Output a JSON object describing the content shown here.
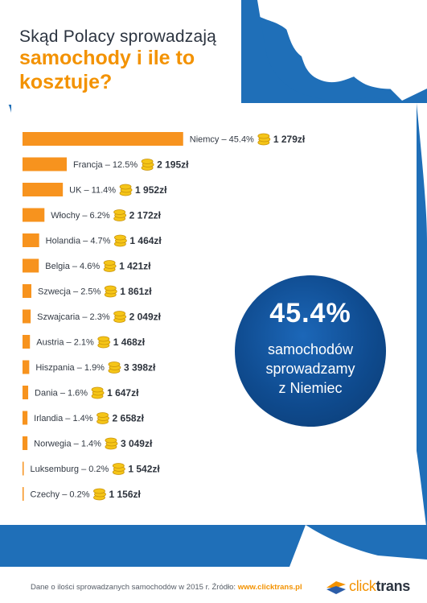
{
  "title": {
    "line1": "Skąd Polacy sprowadzają",
    "line2": "samochody i ile to",
    "line3": "kosztuje?"
  },
  "highlight": {
    "percent": "45.4%",
    "line1": "samochodów",
    "line2": "sprowadzamy",
    "line3": "z Niemiec"
  },
  "footer": {
    "text": "Dane o ilości sprowadzanych samochodów w 2015 r. Źródło:",
    "source": "www.clicktrans.pl",
    "logo_click": "click",
    "logo_trans": "trans"
  },
  "colors": {
    "bar": "#f7931e",
    "accent": "#f39200",
    "blue": "#1f6fb8",
    "circle": "#0f4b8f"
  },
  "chart_data": {
    "type": "bar",
    "orientation": "horizontal",
    "categories": [
      "Niemcy",
      "Francja",
      "UK",
      "Włochy",
      "Holandia",
      "Belgia",
      "Szwecja",
      "Szwajcaria",
      "Austria",
      "Hiszpania",
      "Dania",
      "Irlandia",
      "Norwegia",
      "Luksemburg",
      "Czechy"
    ],
    "labels": [
      "Niemcy – 45.4%",
      "Francja – 12.5%",
      "UK – 11.4%",
      "Włochy – 6.2%",
      "Holandia – 4.7%",
      "Belgia – 4.6%",
      "Szwecja – 2.5%",
      "Szwajcaria – 2.3%",
      "Austria – 2.1%",
      "Hiszpania – 1.9%",
      "Dania – 1.6%",
      "Irlandia – 1.4%",
      "Norwegia – 1.4%",
      "Luksemburg – 0.2%",
      "Czechy – 0.2%"
    ],
    "values": [
      45.4,
      12.5,
      11.4,
      6.2,
      4.7,
      4.6,
      2.5,
      2.3,
      2.1,
      1.9,
      1.6,
      1.4,
      1.4,
      0.2,
      0.2
    ],
    "prices": [
      "1 279zł",
      "2 195zł",
      "1 952zł",
      "2 172zł",
      "1 464zł",
      "1 421zł",
      "1 861zł",
      "2 049zł",
      "1 468zł",
      "3 398zł",
      "1 647zł",
      "2 658zł",
      "3 049zł",
      "1 542zł",
      "1 156zł"
    ],
    "icon": "coin-stack-icon"
  }
}
